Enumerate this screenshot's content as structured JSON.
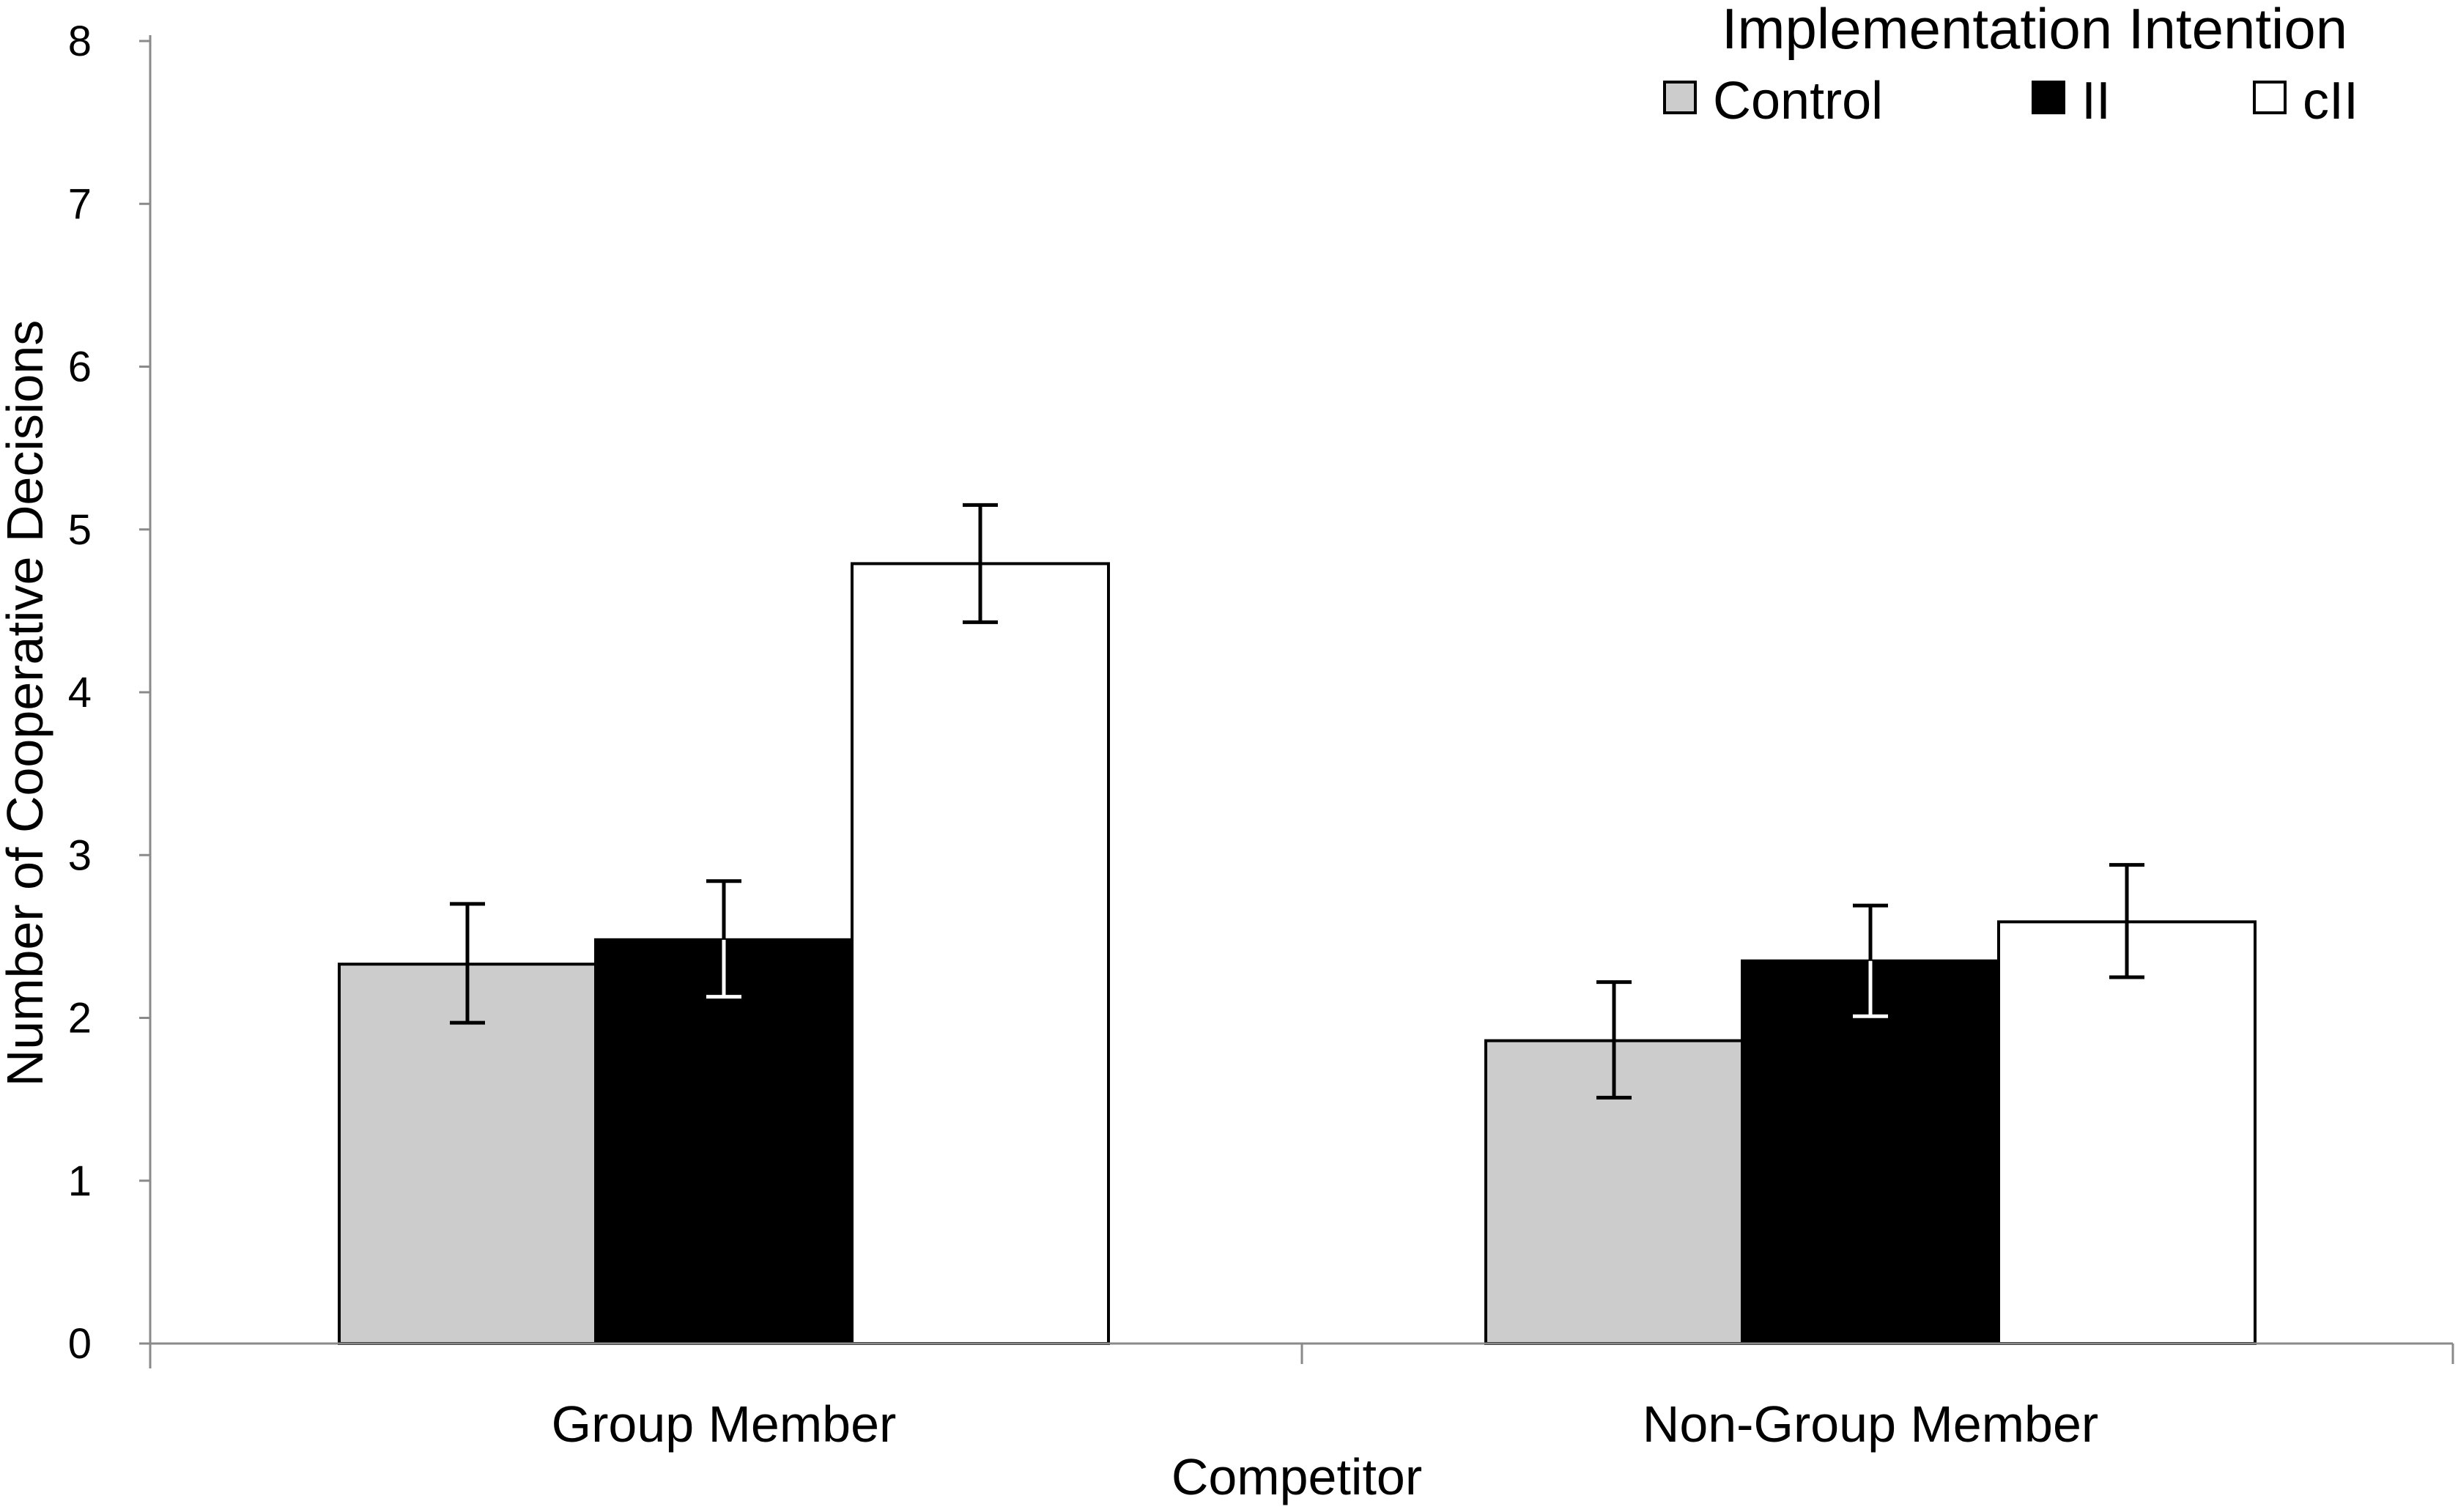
{
  "chart_data": {
    "type": "bar",
    "title": "",
    "xlabel": "Competitor",
    "ylabel": "Number of Cooperative Decisions",
    "ylim": [
      0,
      8
    ],
    "yticks": [
      "0",
      "1",
      "2",
      "3",
      "4",
      "5",
      "6",
      "7",
      "8"
    ],
    "categories": [
      "Group Member",
      "Non-Group Member"
    ],
    "legend_title": "Implementation Intention",
    "legend_position": "top-right",
    "grid": false,
    "series": [
      {
        "name": "Control",
        "color": "#cccccc",
        "values": [
          2.33,
          1.86
        ],
        "err_low": [
          1.97,
          1.51
        ],
        "err_high": [
          2.7,
          2.22
        ]
      },
      {
        "name": "II",
        "color": "#000000",
        "values": [
          2.48,
          2.35
        ],
        "err_low": [
          2.13,
          2.01
        ],
        "err_high": [
          2.84,
          2.69
        ]
      },
      {
        "name": "cII",
        "color": "#ffffff",
        "values": [
          4.79,
          2.59
        ],
        "err_low": [
          4.43,
          2.25
        ],
        "err_high": [
          5.15,
          2.94
        ]
      }
    ]
  }
}
